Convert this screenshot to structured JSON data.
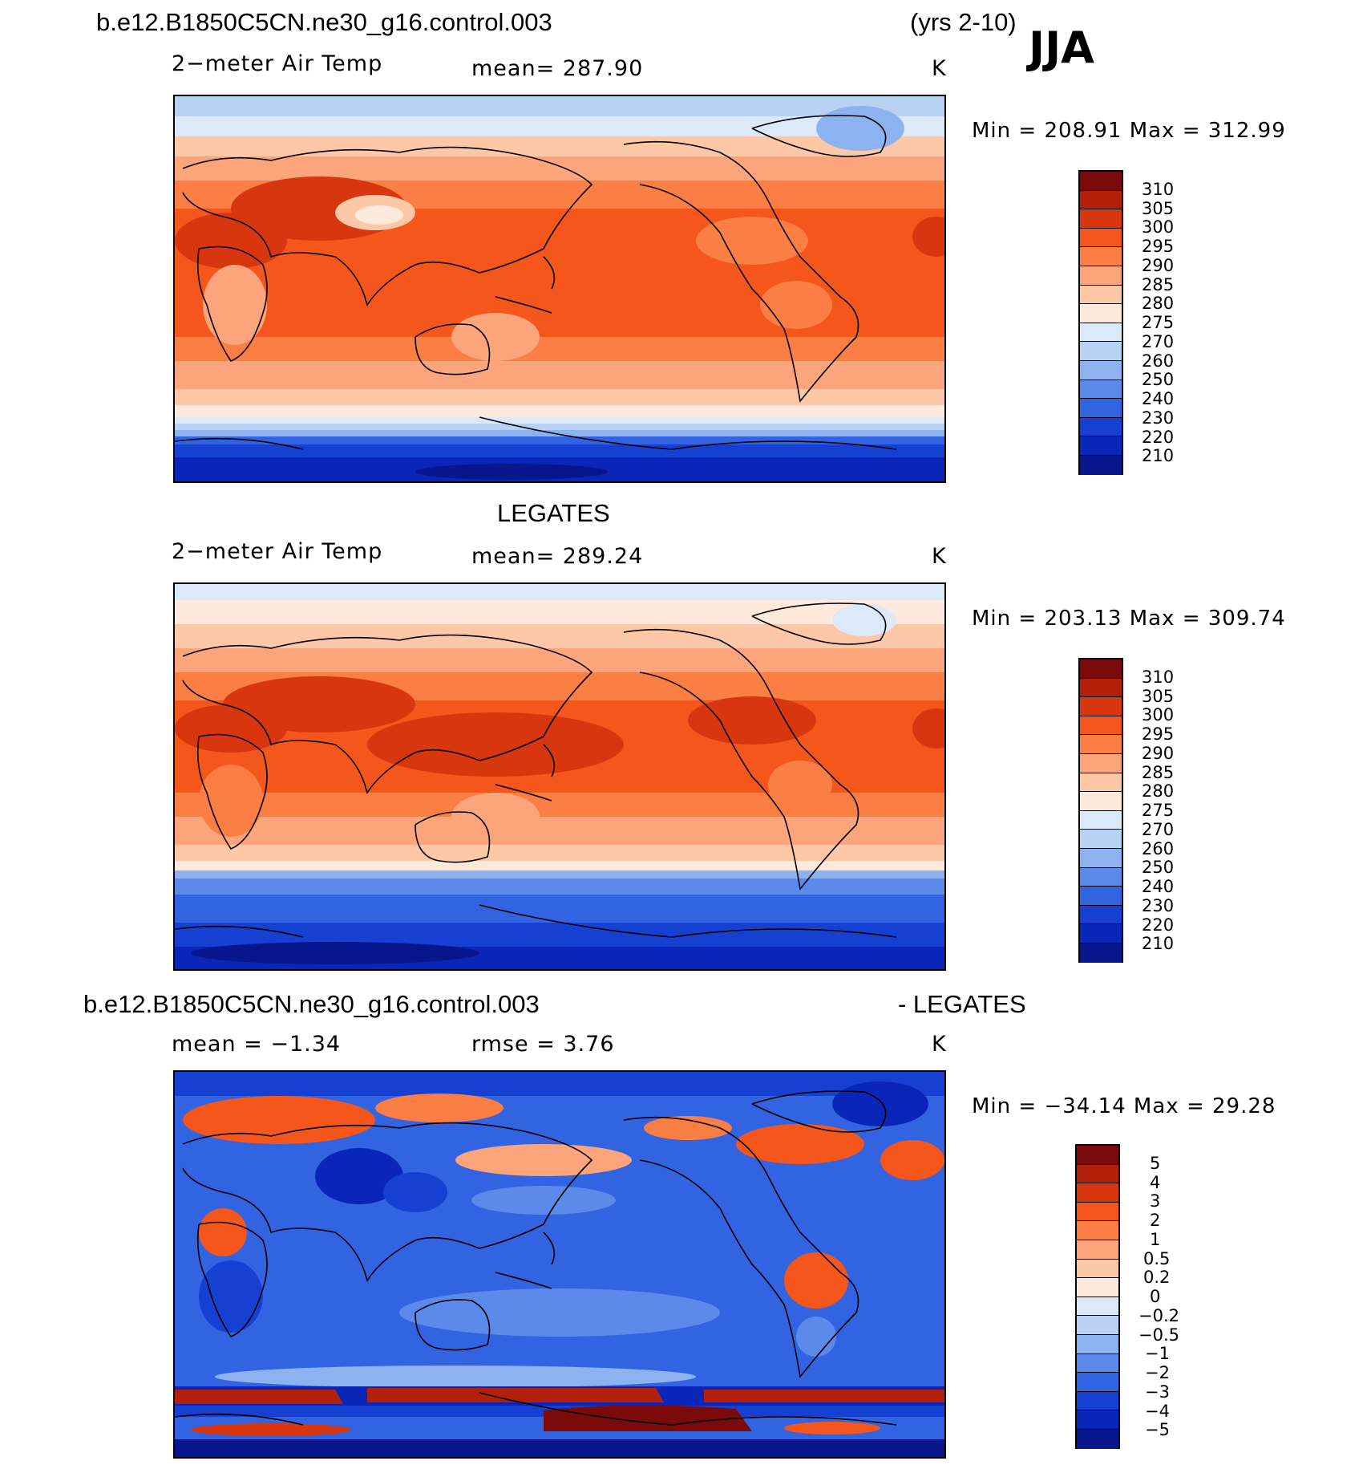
{
  "header": {
    "case_name": "b.e12.B1850C5CN.ne30_g16.control.003",
    "years": "(yrs 2-10)",
    "season": "JJA"
  },
  "panels": [
    {
      "title": "",
      "variable": "2−meter Air Temp",
      "stat": "mean=  287.90",
      "units": "K",
      "minmax": "Min  =  208.91  Max  =  312.99",
      "palette": "temp",
      "levels": [
        "310",
        "305",
        "300",
        "295",
        "290",
        "285",
        "280",
        "275",
        "270",
        "260",
        "250",
        "240",
        "230",
        "220",
        "210"
      ]
    },
    {
      "title": "LEGATES",
      "variable": "2−meter Air Temp",
      "stat": "mean=  289.24",
      "units": "K",
      "minmax": "Min  =  203.13  Max  =  309.74",
      "palette": "temp",
      "levels": [
        "310",
        "305",
        "300",
        "295",
        "290",
        "285",
        "280",
        "275",
        "270",
        "260",
        "250",
        "240",
        "230",
        "220",
        "210"
      ]
    },
    {
      "title_left": "b.e12.B1850C5CN.ne30_g16.control.003",
      "title_right": "- LEGATES",
      "stat_mean": "mean  =   −1.34",
      "stat_rmse": "rmse  =     3.76",
      "units": "K",
      "minmax": "Min  =  −34.14  Max  =    29.28",
      "palette": "diff",
      "levels": [
        "5",
        "4",
        "3",
        "2",
        "1",
        "0.5",
        "0.2",
        "0",
        "−0.2",
        "−0.5",
        "−1",
        "−2",
        "−3",
        "−4",
        "−5"
      ]
    }
  ],
  "colors": {
    "bar": [
      "#7b0a0a",
      "#b2200c",
      "#d8360e",
      "#f4561c",
      "#fb7e44",
      "#fca47c",
      "#fdc8a8",
      "#feeadc",
      "#dce9f8",
      "#b9d2f4",
      "#8cb2f0",
      "#5b8aeb",
      "#3264e2",
      "#1540d2",
      "#0a26b8",
      "#07168d"
    ]
  }
}
